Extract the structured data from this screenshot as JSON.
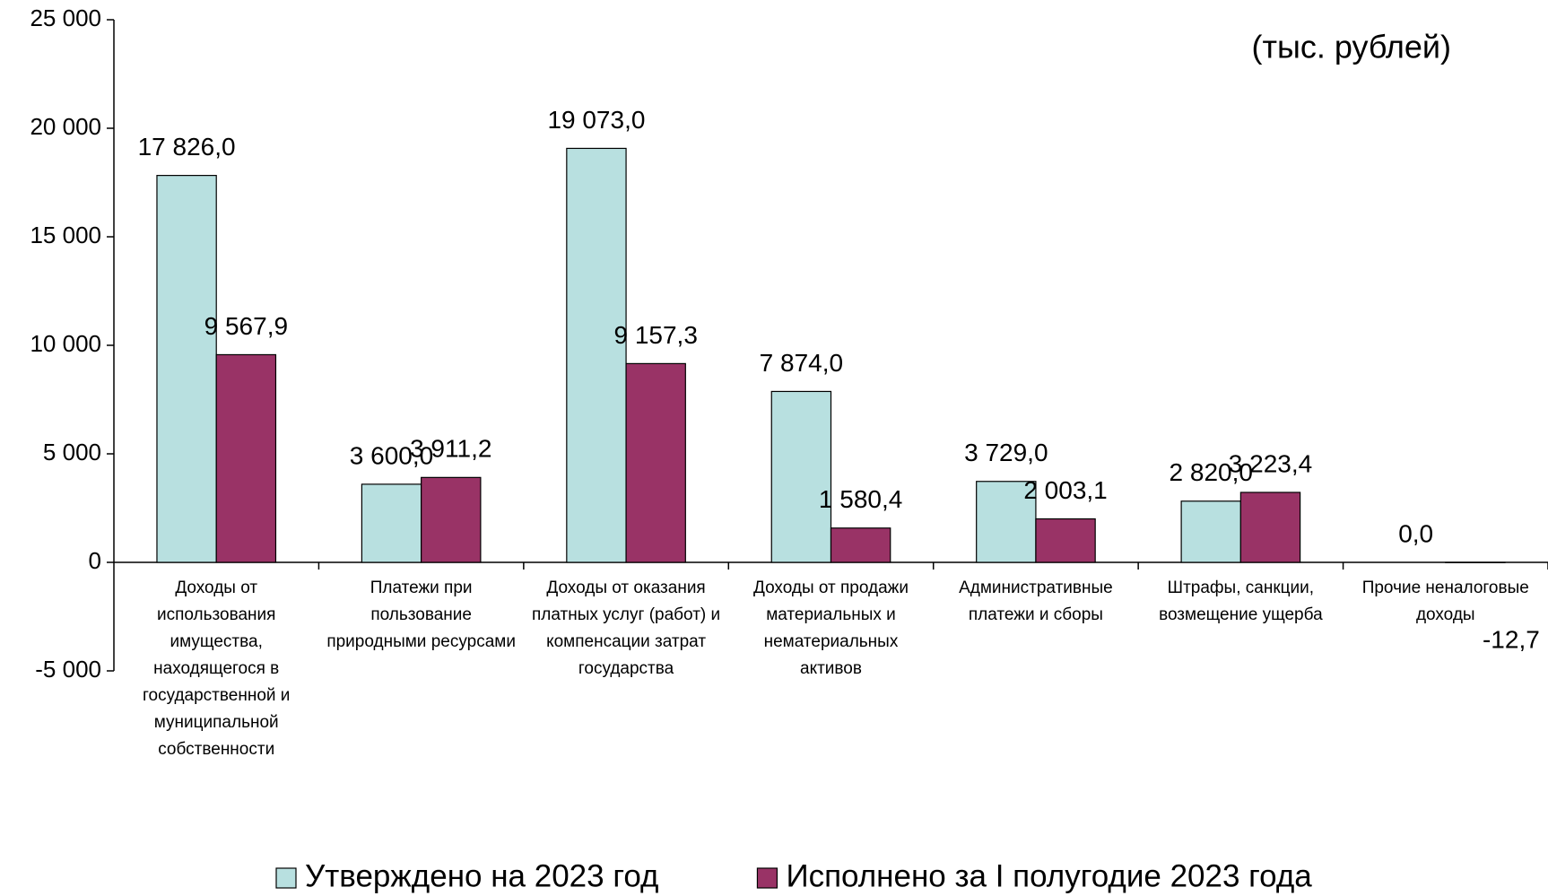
{
  "chart_data": {
    "type": "bar",
    "annotation": "(тыс. рублей)",
    "categories": [
      "Доходы от использования имущества, находящегося в государственной и муниципальной собственности",
      "Платежи при пользование природными ресурсами",
      "Доходы от оказания платных услуг (работ) и компенсации затрат государства",
      "Доходы от продажи материальных и нематериальных активов",
      "Административные платежи и сборы",
      "Штрафы, санкции, возмещение ущерба",
      "Прочие неналоговые доходы"
    ],
    "series": [
      {
        "name": "Утверждено на 2023 год",
        "color": "#b8e0e0",
        "values": [
          17826.0,
          3600.0,
          19073.0,
          7874.0,
          3729.0,
          2820.0,
          0.0
        ],
        "value_labels": [
          "17 826,0",
          "3 600,0",
          "19 073,0",
          "7 874,0",
          "3 729,0",
          "2 820,0",
          "0,0"
        ]
      },
      {
        "name": "Исполнено за I полугодие 2023 года",
        "color": "#993366",
        "values": [
          9567.9,
          3911.2,
          9157.3,
          1580.4,
          2003.1,
          3223.4,
          -12.7
        ],
        "value_labels": [
          "9 567,9",
          "3 911,2",
          "9 157,3",
          "1 580,4",
          "2 003,1",
          "3 223,4",
          "-12,7"
        ]
      }
    ],
    "ylim": [
      -5000,
      25000
    ],
    "yticks": [
      {
        "value": -5000,
        "label": "-5 000"
      },
      0,
      {
        "value": 5000,
        "label": "5 000"
      },
      {
        "value": 10000,
        "label": "10 000"
      },
      {
        "value": 15000,
        "label": "15 000"
      },
      {
        "value": 20000,
        "label": "20 000"
      },
      {
        "value": 25000,
        "label": "25 000"
      }
    ],
    "grid": false,
    "legend": "bottom"
  }
}
